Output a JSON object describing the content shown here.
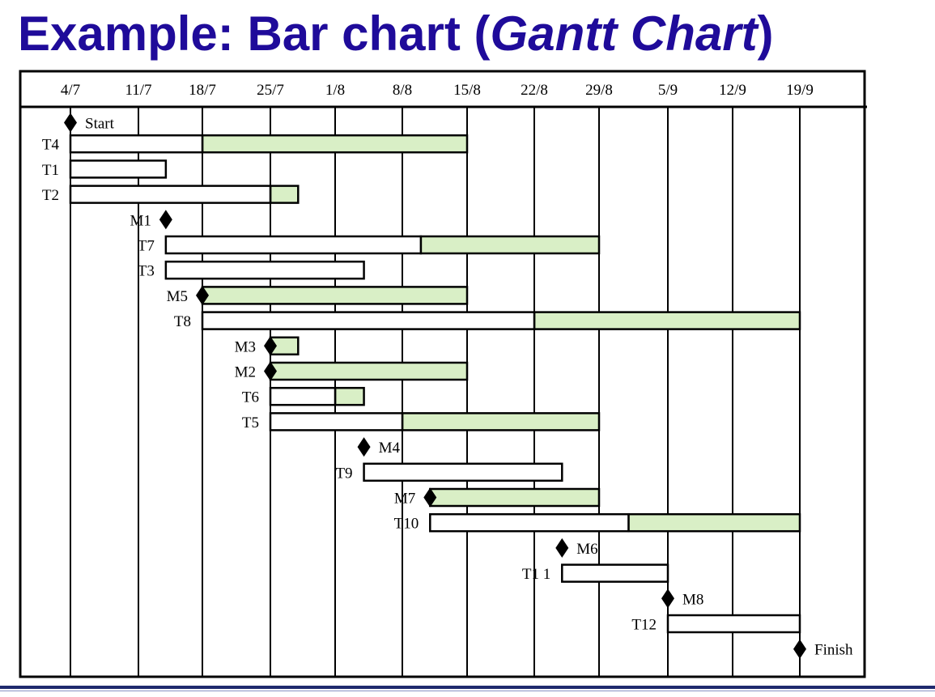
{
  "title": {
    "prefix": "Example: Bar chart (",
    "emphasis": "Gantt Chart",
    "suffix": ")"
  },
  "colors": {
    "title": "#1f0b9a",
    "slack": "#d9efc6",
    "grid": "#000000",
    "footer_line": "#1f2a6e"
  },
  "chart_data": {
    "type": "gantt",
    "x_ticks": [
      "4/7",
      "11/7",
      "18/7",
      "25/7",
      "1/8",
      "8/8",
      "15/8",
      "22/8",
      "29/8",
      "5/9",
      "12/9",
      "19/9"
    ],
    "rows": [
      {
        "label": "Start",
        "kind": "milestone",
        "date": "4/7"
      },
      {
        "label": "T4",
        "kind": "task",
        "start": "4/7",
        "end": "18/7",
        "slack_end": "15/8"
      },
      {
        "label": "T1",
        "kind": "task",
        "start": "4/7",
        "end": "14/7"
      },
      {
        "label": "T2",
        "kind": "task",
        "start": "4/7",
        "end": "25/7",
        "slack_end": "28/7"
      },
      {
        "label": "M1",
        "kind": "milestone",
        "date": "14/7"
      },
      {
        "label": "T7",
        "kind": "task",
        "start": "14/7",
        "end": "10/8",
        "slack_end": "29/8"
      },
      {
        "label": "T3",
        "kind": "task",
        "start": "14/7",
        "end": "4/8"
      },
      {
        "label": "M5",
        "kind": "milestone",
        "date": "18/7",
        "slack_end": "15/8"
      },
      {
        "label": "T8",
        "kind": "task",
        "start": "18/7",
        "end": "22/8",
        "slack_end": "19/9"
      },
      {
        "label": "M3",
        "kind": "milestone",
        "date": "25/7",
        "slack_end": "28/7"
      },
      {
        "label": "M2",
        "kind": "milestone",
        "date": "25/7",
        "slack_end": "15/8"
      },
      {
        "label": "T6",
        "kind": "task",
        "start": "25/7",
        "end": "1/8",
        "slack_end": "4/8"
      },
      {
        "label": "T5",
        "kind": "task",
        "start": "25/7",
        "end": "8/8",
        "slack_end": "29/8"
      },
      {
        "label": "M4",
        "kind": "milestone",
        "date": "4/8"
      },
      {
        "label": "T9",
        "kind": "task",
        "start": "4/8",
        "end": "25/8"
      },
      {
        "label": "M7",
        "kind": "milestone",
        "date": "11/8",
        "slack_end": "29/8"
      },
      {
        "label": "T10",
        "kind": "task",
        "start": "11/8",
        "end": "1/9",
        "slack_end": "19/9"
      },
      {
        "label": "M6",
        "kind": "milestone",
        "date": "25/8"
      },
      {
        "label": "T1 1",
        "kind": "task",
        "start": "25/8",
        "end": "5/9"
      },
      {
        "label": "M8",
        "kind": "milestone",
        "date": "5/9"
      },
      {
        "label": "T12",
        "kind": "task",
        "start": "5/9",
        "end": "19/9"
      },
      {
        "label": "Finish",
        "kind": "milestone",
        "date": "19/9"
      }
    ]
  }
}
